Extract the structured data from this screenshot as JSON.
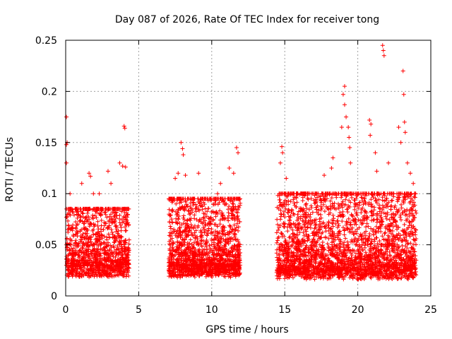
{
  "chart_data": {
    "type": "scatter",
    "title": "Day 087 of 2026, Rate Of TEC Index for receiver tong",
    "xlabel": "GPS time / hours",
    "ylabel": "ROTI / TECUs",
    "xlim": [
      0,
      25
    ],
    "ylim": [
      0,
      0.25
    ],
    "xticks": [
      0,
      5,
      10,
      15,
      20,
      25
    ],
    "xtick_labels": [
      "0",
      "5",
      "10",
      "15",
      "20",
      "25"
    ],
    "yticks": [
      0,
      0.05,
      0.1,
      0.15,
      0.2,
      0.25
    ],
    "ytick_labels": [
      "0",
      "0.05",
      "0.1",
      "0.15",
      "0.2",
      "0.25"
    ],
    "grid": true,
    "marker": "+",
    "color": "#ff0000",
    "series": [
      {
        "name": "ROTI",
        "x": [
          0.05,
          0.1,
          0.15,
          0.2,
          0.3,
          0.45,
          0.6,
          0.75,
          0.9,
          1.0,
          1.1,
          1.2,
          1.3,
          1.4,
          1.5,
          1.6,
          1.7,
          1.8,
          1.9,
          2.0,
          2.1,
          2.2,
          2.3,
          2.4,
          2.5,
          2.6,
          2.7,
          2.8,
          2.9,
          3.0,
          3.1,
          3.2,
          3.3,
          3.4,
          3.5,
          3.6,
          3.7,
          3.8,
          3.9,
          4.0,
          4.1,
          4.2,
          4.3,
          7.1,
          7.2,
          7.3,
          7.4,
          7.5,
          7.6,
          7.7,
          7.8,
          7.9,
          8.0,
          8.1,
          8.2,
          8.3,
          8.4,
          8.5,
          8.6,
          8.7,
          8.8,
          8.9,
          9.0,
          9.1,
          9.2,
          9.3,
          9.4,
          9.5,
          9.6,
          9.7,
          9.8,
          9.9,
          10.0,
          10.1,
          10.2,
          10.3,
          10.4,
          10.5,
          10.6,
          10.7,
          10.8,
          10.9,
          11.0,
          11.1,
          11.2,
          11.3,
          11.4,
          11.5,
          11.6,
          11.7,
          11.8,
          14.5,
          14.6,
          14.7,
          14.8,
          14.9,
          15.0,
          15.1,
          15.2,
          15.3,
          15.4,
          15.5,
          15.6,
          15.7,
          15.8,
          15.9,
          16.0,
          16.2,
          16.4,
          16.6,
          16.8,
          17.0,
          17.2,
          17.4,
          17.6,
          17.8,
          18.0,
          18.2,
          18.4,
          18.6,
          18.8,
          19.0,
          19.2,
          19.4,
          19.6,
          19.8,
          20.0,
          20.2,
          20.4,
          20.6,
          20.8,
          21.0,
          21.2,
          21.4,
          21.6,
          21.8,
          22.0,
          22.2,
          22.4,
          22.6,
          22.8,
          23.0,
          23.2,
          23.4,
          23.6,
          23.8,
          24.0
        ],
        "y": [
          0.03,
          0.045,
          0.025,
          0.035,
          0.03,
          0.04,
          0.035,
          0.03,
          0.04,
          0.045,
          0.035,
          0.03,
          0.04,
          0.035,
          0.05,
          0.04,
          0.035,
          0.03,
          0.045,
          0.04,
          0.035,
          0.03,
          0.04,
          0.05,
          0.045,
          0.03,
          0.035,
          0.04,
          0.03,
          0.045,
          0.035,
          0.04,
          0.03,
          0.035,
          0.045,
          0.04,
          0.035,
          0.03,
          0.04,
          0.045,
          0.035,
          0.03,
          0.04,
          0.035,
          0.04,
          0.03,
          0.045,
          0.04,
          0.035,
          0.03,
          0.05,
          0.045,
          0.04,
          0.035,
          0.03,
          0.04,
          0.045,
          0.035,
          0.03,
          0.04,
          0.035,
          0.045,
          0.04,
          0.03,
          0.035,
          0.04,
          0.045,
          0.035,
          0.03,
          0.04,
          0.035,
          0.045,
          0.05,
          0.04,
          0.035,
          0.03,
          0.04,
          0.045,
          0.035,
          0.04,
          0.03,
          0.035,
          0.045,
          0.04,
          0.035,
          0.03,
          0.04,
          0.045,
          0.035,
          0.03,
          0.04,
          0.035,
          0.04,
          0.03,
          0.045,
          0.04,
          0.035,
          0.03,
          0.04,
          0.045,
          0.035,
          0.03,
          0.04,
          0.035,
          0.045,
          0.04,
          0.035,
          0.04,
          0.03,
          0.045,
          0.04,
          0.035,
          0.04,
          0.05,
          0.045,
          0.04,
          0.035,
          0.045,
          0.05,
          0.04,
          0.045,
          0.05,
          0.04,
          0.045,
          0.04,
          0.035,
          0.045,
          0.04,
          0.035,
          0.04,
          0.045,
          0.04,
          0.035,
          0.04,
          0.045,
          0.04,
          0.035,
          0.04,
          0.045,
          0.035,
          0.04,
          0.035,
          0.045,
          0.04,
          0.035,
          0.04,
          0.035
        ]
      }
    ],
    "cloud_bands": [
      {
        "x": [
          0.05,
          4.35
        ],
        "y": [
          0.01,
          0.085
        ],
        "count": 1100
      },
      {
        "x": [
          7.05,
          11.95
        ],
        "y": [
          0.01,
          0.095
        ],
        "count": 1500
      },
      {
        "x": [
          14.45,
          24.0
        ],
        "y": [
          0.008,
          0.1
        ],
        "count": 2600
      }
    ],
    "outliers": [
      [
        0.05,
        0.175
      ],
      [
        0.05,
        0.148
      ],
      [
        0.1,
        0.15
      ],
      [
        0.05,
        0.13
      ],
      [
        0.3,
        0.1
      ],
      [
        0.05,
        0.05
      ],
      [
        0.45,
        0.082
      ],
      [
        1.1,
        0.11
      ],
      [
        1.6,
        0.12
      ],
      [
        1.7,
        0.117
      ],
      [
        1.9,
        0.1
      ],
      [
        2.3,
        0.1
      ],
      [
        2.9,
        0.122
      ],
      [
        3.1,
        0.11
      ],
      [
        3.7,
        0.13
      ],
      [
        3.9,
        0.127
      ],
      [
        4.0,
        0.166
      ],
      [
        4.05,
        0.164
      ],
      [
        4.1,
        0.126
      ],
      [
        7.5,
        0.115
      ],
      [
        7.7,
        0.12
      ],
      [
        7.9,
        0.15
      ],
      [
        8.0,
        0.144
      ],
      [
        8.05,
        0.138
      ],
      [
        8.2,
        0.118
      ],
      [
        9.1,
        0.12
      ],
      [
        10.4,
        0.1
      ],
      [
        10.6,
        0.11
      ],
      [
        11.2,
        0.125
      ],
      [
        11.5,
        0.12
      ],
      [
        11.7,
        0.145
      ],
      [
        11.8,
        0.14
      ],
      [
        14.7,
        0.13
      ],
      [
        14.8,
        0.146
      ],
      [
        14.85,
        0.14
      ],
      [
        15.1,
        0.115
      ],
      [
        16.2,
        0.1
      ],
      [
        17.7,
        0.118
      ],
      [
        18.2,
        0.125
      ],
      [
        18.3,
        0.135
      ],
      [
        18.9,
        0.165
      ],
      [
        19.0,
        0.197
      ],
      [
        19.1,
        0.205
      ],
      [
        19.1,
        0.187
      ],
      [
        19.2,
        0.175
      ],
      [
        19.35,
        0.165
      ],
      [
        19.4,
        0.155
      ],
      [
        19.45,
        0.145
      ],
      [
        19.5,
        0.13
      ],
      [
        20.8,
        0.172
      ],
      [
        20.9,
        0.168
      ],
      [
        20.85,
        0.157
      ],
      [
        21.2,
        0.14
      ],
      [
        21.3,
        0.122
      ],
      [
        21.7,
        0.245
      ],
      [
        21.75,
        0.24
      ],
      [
        21.8,
        0.235
      ],
      [
        22.1,
        0.13
      ],
      [
        22.8,
        0.165
      ],
      [
        22.95,
        0.15
      ],
      [
        23.1,
        0.22
      ],
      [
        23.15,
        0.197
      ],
      [
        23.2,
        0.17
      ],
      [
        23.25,
        0.16
      ],
      [
        23.4,
        0.13
      ],
      [
        23.6,
        0.12
      ],
      [
        23.8,
        0.11
      ],
      [
        23.9,
        0.1
      ]
    ]
  }
}
